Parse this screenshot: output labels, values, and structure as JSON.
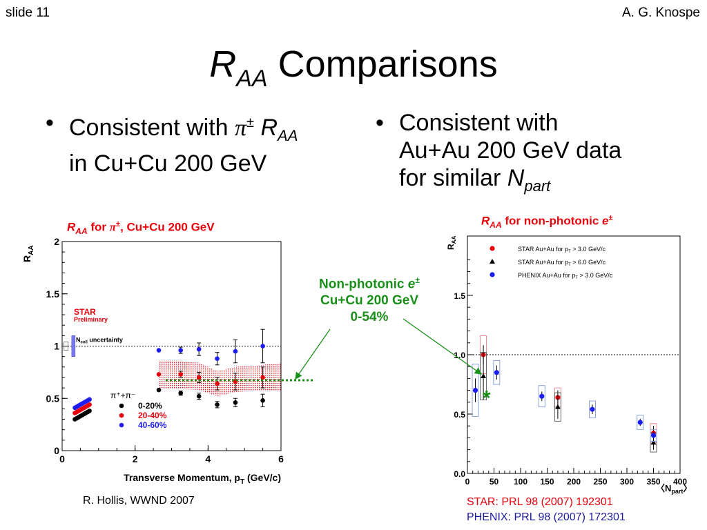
{
  "slide": {
    "number_label": "slide 11",
    "author": "A. G. Knospe",
    "title_r": "R",
    "title_sub": "AA",
    "title_rest": " Comparisons"
  },
  "bullets": {
    "left": {
      "line1_text": "Consistent with ",
      "line1_pi": "π",
      "line1_pm": "±",
      "line1_r": "R",
      "line1_sub": "AA",
      "line2": "in Cu+Cu 200 GeV"
    },
    "right": {
      "line1": "Consistent with",
      "line2": "Au+Au 200 GeV data",
      "line3_text": "for similar ",
      "line3_n": "N",
      "line3_sub": "part"
    }
  },
  "left_plot_title": {
    "r": "R",
    "sub": "AA",
    "for": " for ",
    "pi": "π",
    "pm": "±",
    "rest": ", Cu+Cu 200 GeV"
  },
  "right_plot_title": {
    "r": "R",
    "sub": "AA",
    "rest": " for non-photonic ",
    "e": "e",
    "pm": "±"
  },
  "annotation": {
    "line1_text": "Non-photonic ",
    "line1_e": "e",
    "line1_pm": "±",
    "line2": "Cu+Cu 200 GeV",
    "line3": "0-54%"
  },
  "citations": {
    "left": "R. Hollis, WWND 2007",
    "star": "STAR: PRL 98 (2007) 192301",
    "phenix": "PHENIX: PRL 98 (2007) 172301"
  },
  "colors": {
    "red": "#e8000b",
    "blue": "#1c1cf0",
    "black": "#000000",
    "green": "#1a8f1a",
    "phenix_cite_blue": "#1c1c9c"
  },
  "chart_data": [
    {
      "type": "scatter",
      "xlabel": "Transverse Momentum, p",
      "xlabel_sub": "T",
      "xlabel_unit": " (GeV/c)",
      "ylabel": "R",
      "ylabel_sub": "AA",
      "xlim": [
        0,
        6
      ],
      "ylim": [
        0,
        2
      ],
      "xticks": [
        0,
        2,
        4,
        6
      ],
      "xtick_labels": [
        "0",
        "2",
        "4",
        "6"
      ],
      "yticks": [
        0,
        0.5,
        1,
        1.5,
        2
      ],
      "ytick_labels": [
        "0",
        "0.5",
        "1",
        "1.5",
        "2"
      ],
      "reference_line": 1,
      "ncoll_label": "N",
      "ncoll_sub": "coll",
      "ncoll_rest": " uncertainty",
      "ncoll_band": [
        0.9,
        1.1
      ],
      "star_label": "STAR",
      "preliminary_label": "Preliminary",
      "legend_header": "π⁺+π⁻",
      "series": [
        {
          "name": "0-20%",
          "color": "#000000",
          "x": [
            0.35,
            0.4,
            0.45,
            0.5,
            0.55,
            0.6,
            0.65,
            0.7,
            0.75,
            2.65,
            3.25,
            3.75,
            4.25,
            4.75,
            5.5
          ],
          "y": [
            0.3,
            0.31,
            0.32,
            0.33,
            0.34,
            0.35,
            0.36,
            0.37,
            0.38,
            0.58,
            0.55,
            0.52,
            0.44,
            0.46,
            0.48
          ],
          "yerr": [
            0,
            0,
            0,
            0,
            0,
            0,
            0,
            0,
            0,
            0,
            0.02,
            0.03,
            0.03,
            0.04,
            0.06
          ]
        },
        {
          "name": "20-40%",
          "color": "#e8000b",
          "x": [
            0.35,
            0.4,
            0.45,
            0.5,
            0.55,
            0.6,
            0.65,
            0.7,
            0.75,
            2.65,
            3.25,
            3.75,
            4.25,
            4.75,
            5.5
          ],
          "y": [
            0.36,
            0.37,
            0.38,
            0.39,
            0.4,
            0.41,
            0.42,
            0.43,
            0.44,
            0.73,
            0.73,
            0.7,
            0.64,
            0.66,
            0.7
          ],
          "yerr": [
            0,
            0,
            0,
            0,
            0,
            0,
            0,
            0,
            0,
            0,
            0.03,
            0.05,
            0.06,
            0.08,
            0.1
          ]
        },
        {
          "name": "40-60%",
          "color": "#1c1cf0",
          "x": [
            0.35,
            0.4,
            0.45,
            0.5,
            0.55,
            0.6,
            0.65,
            0.7,
            0.75,
            2.65,
            3.25,
            3.75,
            4.25,
            4.75,
            5.5
          ],
          "y": [
            0.41,
            0.42,
            0.43,
            0.44,
            0.45,
            0.46,
            0.47,
            0.48,
            0.49,
            0.96,
            0.96,
            0.97,
            0.88,
            0.95,
            1.0
          ],
          "yerr": [
            0,
            0,
            0,
            0,
            0,
            0,
            0,
            0,
            0,
            0,
            0.03,
            0.06,
            0.06,
            0.11,
            0.16
          ]
        }
      ],
      "band": {
        "name": "Non-photonic e±",
        "color": "#e8000b",
        "x": [
          2.65,
          3.25,
          3.75,
          4.25,
          4.75,
          5.5,
          6.0
        ],
        "lower": [
          0.6,
          0.59,
          0.58,
          0.52,
          0.56,
          0.58,
          0.57
        ],
        "upper": [
          0.86,
          0.86,
          0.84,
          0.76,
          0.8,
          0.82,
          0.84
        ]
      }
    },
    {
      "type": "scatter",
      "xlabel": "N",
      "xlabel_sub": "part",
      "ylabel": "R",
      "ylabel_sub": "AA",
      "xlim": [
        0,
        400
      ],
      "ylim": [
        0,
        2.0
      ],
      "xticks": [
        0,
        50,
        100,
        150,
        200,
        250,
        300,
        350,
        400
      ],
      "xtick_labels": [
        "0",
        "50",
        "100",
        "150",
        "200",
        "250",
        "300",
        "350",
        "400"
      ],
      "yticks": [
        0.0,
        0.5,
        1.0,
        1.5
      ],
      "ytick_labels": [
        "0.0",
        "0.5",
        "1.0",
        "1.5"
      ],
      "reference_line": 1,
      "cucu_point": {
        "x": 36,
        "y": 0.66,
        "label": "*"
      },
      "series": [
        {
          "name": "STAR Au+Au for p",
          "name_sub": "T",
          "name_rest": " > 3.0 GeV/c",
          "marker": "circle",
          "color": "#e8000b",
          "x": [
            30,
            170,
            350
          ],
          "y": [
            1.0,
            0.64,
            0.34
          ],
          "yerr": [
            0.08,
            0.06,
            0.06
          ],
          "syst": [
            0.16,
            0.08,
            0.08
          ]
        },
        {
          "name": "STAR Au+Au for p",
          "name_sub": "T",
          "name_rest": " > 6.0 GeV/c",
          "marker": "triangle",
          "color": "#000000",
          "x": [
            30,
            170,
            350
          ],
          "y": [
            0.82,
            0.56,
            0.26
          ],
          "yerr": [
            0.2,
            0.1,
            0.06
          ],
          "syst": [
            0.2,
            0.12,
            0.08
          ]
        },
        {
          "name": "PHENIX Au+Au for p",
          "name_sub": "T",
          "name_rest": " > 3.0 GeV/c",
          "marker": "circle",
          "color": "#1c1cf0",
          "x": [
            15,
            55,
            140,
            235,
            325,
            350
          ],
          "y": [
            0.7,
            0.85,
            0.65,
            0.54,
            0.43,
            0.32
          ],
          "yerr": [
            0.1,
            0.06,
            0.04,
            0.04,
            0.03,
            0.03
          ],
          "syst": [
            0.22,
            0.1,
            0.09,
            0.07,
            0.06,
            0.05
          ]
        }
      ]
    }
  ]
}
